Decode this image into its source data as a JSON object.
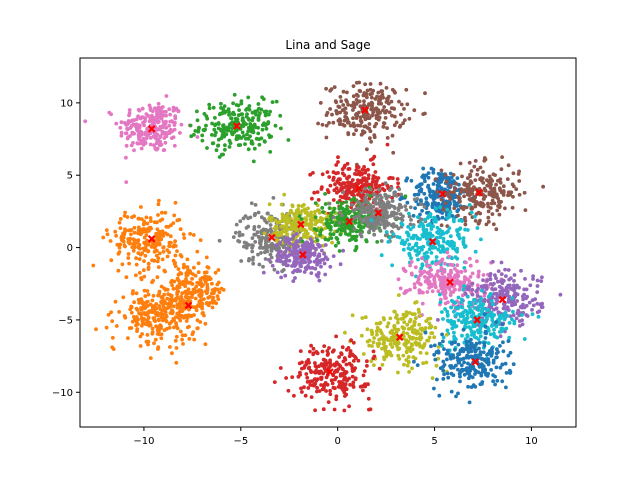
{
  "chart_data": {
    "type": "scatter",
    "title": "Lina and Sage",
    "xlabel": "",
    "ylabel": "",
    "xlim": [
      -13.3,
      12.3
    ],
    "ylim": [
      -12.4,
      13.1
    ],
    "grid": false,
    "legend": "none",
    "x_ticks": [
      -10,
      -5,
      0,
      5,
      10
    ],
    "y_ticks": [
      -10,
      -5,
      0,
      5,
      10
    ],
    "clusters": [
      {
        "color": "#e377c2",
        "center": [
          -9.6,
          8.3
        ],
        "spread": [
          0.85,
          0.9
        ],
        "count": 230
      },
      {
        "color": "#2ca02c",
        "center": [
          -5.2,
          8.4
        ],
        "spread": [
          0.95,
          0.85
        ],
        "count": 230
      },
      {
        "color": "#8c564b",
        "center": [
          1.5,
          9.4
        ],
        "spread": [
          1.0,
          0.95
        ],
        "count": 230
      },
      {
        "color": "#d62728",
        "center": [
          1.0,
          4.2
        ],
        "spread": [
          0.95,
          0.85
        ],
        "count": 230
      },
      {
        "color": "#1f77b4",
        "center": [
          5.3,
          3.6
        ],
        "spread": [
          0.75,
          0.9
        ],
        "count": 230
      },
      {
        "color": "#8c564b",
        "center": [
          7.4,
          3.8
        ],
        "spread": [
          1.0,
          0.95
        ],
        "count": 230
      },
      {
        "color": "#ff7f0e",
        "center": [
          -9.8,
          0.6
        ],
        "spread": [
          0.95,
          1.0
        ],
        "count": 230
      },
      {
        "color": "#7f7f7f",
        "center": [
          -3.4,
          0.7
        ],
        "spread": [
          0.9,
          0.95
        ],
        "count": 230
      },
      {
        "color": "#bcbd22",
        "center": [
          -1.8,
          1.6
        ],
        "spread": [
          0.85,
          0.75
        ],
        "count": 230
      },
      {
        "color": "#9467bd",
        "center": [
          -1.8,
          -0.6
        ],
        "spread": [
          0.75,
          0.65
        ],
        "count": 200
      },
      {
        "color": "#2ca02c",
        "center": [
          0.6,
          1.8
        ],
        "spread": [
          0.8,
          0.8
        ],
        "count": 230
      },
      {
        "color": "#7f7f7f",
        "center": [
          2.2,
          2.4
        ],
        "spread": [
          0.95,
          0.8
        ],
        "count": 230
      },
      {
        "color": "#17becf",
        "center": [
          4.9,
          0.4
        ],
        "spread": [
          1.05,
          0.9
        ],
        "count": 230
      },
      {
        "color": "#ff7f0e",
        "center": [
          -7.6,
          -3.1
        ],
        "spread": [
          0.95,
          0.95
        ],
        "count": 230
      },
      {
        "color": "#ff7f0e",
        "center": [
          -9.3,
          -4.8
        ],
        "spread": [
          0.95,
          0.9
        ],
        "count": 230
      },
      {
        "color": "#e377c2",
        "center": [
          5.7,
          -2.4
        ],
        "spread": [
          1.05,
          0.85
        ],
        "count": 230
      },
      {
        "color": "#9467bd",
        "center": [
          8.6,
          -3.6
        ],
        "spread": [
          0.95,
          0.95
        ],
        "count": 230
      },
      {
        "color": "#17becf",
        "center": [
          7.1,
          -5.1
        ],
        "spread": [
          1.0,
          0.9
        ],
        "count": 230
      },
      {
        "color": "#bcbd22",
        "center": [
          3.3,
          -6.2
        ],
        "spread": [
          1.0,
          0.95
        ],
        "count": 230
      },
      {
        "color": "#d62728",
        "center": [
          -0.3,
          -8.6
        ],
        "spread": [
          1.0,
          0.95
        ],
        "count": 230
      },
      {
        "color": "#1f77b4",
        "center": [
          6.9,
          -7.9
        ],
        "spread": [
          0.95,
          1.0
        ],
        "count": 230
      }
    ],
    "centroids": [
      [
        -9.6,
        8.2
      ],
      [
        -5.2,
        8.4
      ],
      [
        1.4,
        9.5
      ],
      [
        1.1,
        4.1
      ],
      [
        5.4,
        3.7
      ],
      [
        7.3,
        3.8
      ],
      [
        -9.6,
        0.6
      ],
      [
        -3.4,
        0.7
      ],
      [
        -1.9,
        1.6
      ],
      [
        -1.8,
        -0.5
      ],
      [
        0.6,
        1.8
      ],
      [
        2.1,
        2.4
      ],
      [
        4.9,
        0.4
      ],
      [
        -7.7,
        -4.0
      ],
      [
        5.8,
        -2.4
      ],
      [
        8.5,
        -3.6
      ],
      [
        7.2,
        -5.0
      ],
      [
        3.2,
        -6.2
      ],
      [
        -0.4,
        -8.6
      ],
      [
        7.1,
        -7.9
      ]
    ],
    "centroid_color": "#ff0000"
  }
}
